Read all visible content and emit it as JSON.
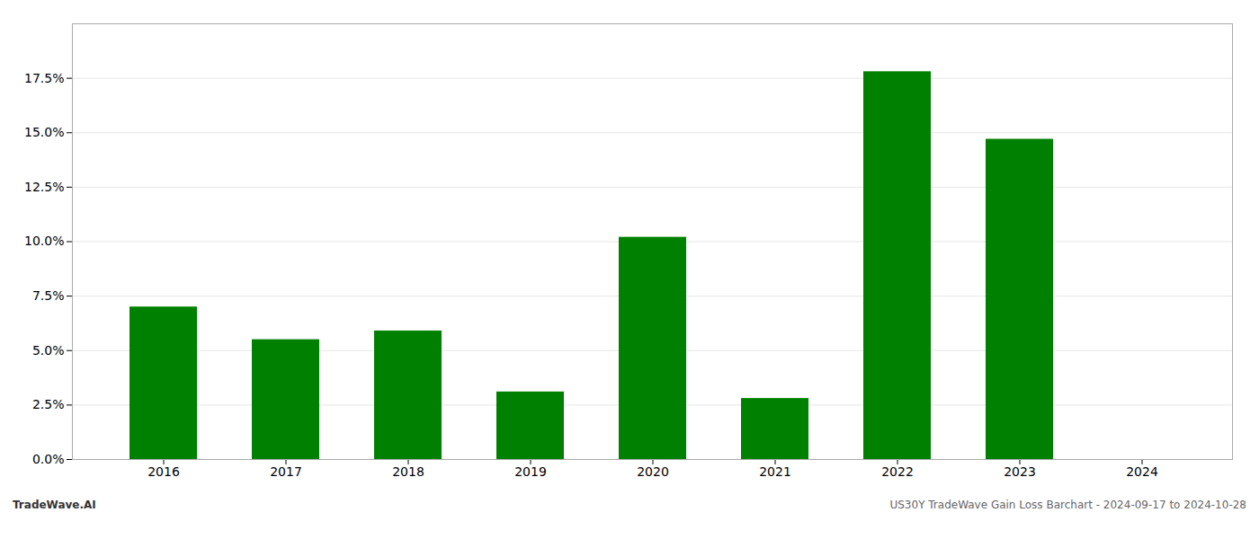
{
  "chart_data": {
    "type": "bar",
    "categories": [
      "2016",
      "2017",
      "2018",
      "2019",
      "2020",
      "2021",
      "2022",
      "2023",
      "2024"
    ],
    "values": [
      0.07,
      0.055,
      0.059,
      0.031,
      0.102,
      0.028,
      0.178,
      0.147,
      0.0
    ],
    "color": "#008000",
    "ylim": [
      0,
      0.2
    ],
    "yticks": [
      {
        "value": 0.0,
        "label": "0.0%"
      },
      {
        "value": 0.025,
        "label": "2.5%"
      },
      {
        "value": 0.05,
        "label": "5.0%"
      },
      {
        "value": 0.075,
        "label": "7.5%"
      },
      {
        "value": 0.1,
        "label": "10.0%"
      },
      {
        "value": 0.125,
        "label": "12.5%"
      },
      {
        "value": 0.15,
        "label": "15.0%"
      },
      {
        "value": 0.175,
        "label": "17.5%"
      }
    ],
    "grid": true,
    "annotations": [
      "TradeWave.AI",
      "US30Y TradeWave Gain Loss Barchart - 2024-09-17 to 2024-10-28"
    ]
  }
}
